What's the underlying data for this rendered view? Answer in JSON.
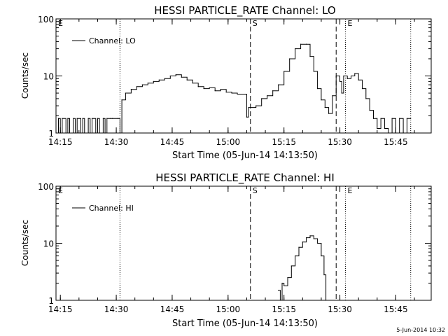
{
  "footer": {
    "stamp": "5-Jun-2014 10:32"
  },
  "chart_data": [
    {
      "type": "line",
      "title": "HESSI PARTICLE_RATE Channel: LO",
      "xlabel": "Start Time (05-Jun-14 14:13:50)",
      "ylabel": "Counts/sec",
      "y_scale": "log",
      "ylim": [
        1,
        100
      ],
      "xlim": [
        "14:13:50",
        "15:54:30"
      ],
      "x_ticks": [
        "14:15",
        "14:30",
        "14:45",
        "15:00",
        "15:15",
        "15:30",
        "15:45"
      ],
      "y_ticks": [
        "1",
        "10",
        "100"
      ],
      "grid": false,
      "legend": "top-left",
      "series": [
        {
          "name": "Channel: LO",
          "color": "#000000",
          "x": [
            "14:13:50",
            "14:14:30",
            "14:15:00",
            "14:15:30",
            "14:16:30",
            "14:17:00",
            "14:17:30",
            "14:18:30",
            "14:19:00",
            "14:19:30",
            "14:20:30",
            "14:21:00",
            "14:21:30",
            "14:22:30",
            "14:23:00",
            "14:23:30",
            "14:24:30",
            "14:25:00",
            "14:25:30",
            "14:26:30",
            "14:27:00",
            "14:27:30",
            "14:28:30",
            "14:29:00",
            "14:30:30",
            "14:31:00",
            "14:31:30",
            "14:32:30",
            "14:34:00",
            "14:35:30",
            "14:37:00",
            "14:38:30",
            "14:40:00",
            "14:41:30",
            "14:43:00",
            "14:44:30",
            "14:46:00",
            "14:47:30",
            "14:49:00",
            "14:50:30",
            "14:52:00",
            "14:53:30",
            "14:55:00",
            "14:56:30",
            "14:58:00",
            "14:59:30",
            "15:01:00",
            "15:02:30",
            "15:05:00",
            "15:05:30",
            "15:06:00",
            "15:07:30",
            "15:09:00",
            "15:10:30",
            "15:12:00",
            "15:13:30",
            "15:15:00",
            "15:16:30",
            "15:18:00",
            "15:19:30",
            "15:21:00",
            "15:22:00",
            "15:23:00",
            "15:24:00",
            "15:25:00",
            "15:26:00",
            "15:27:00",
            "15:28:00",
            "15:29:00",
            "15:30:00",
            "15:30:30",
            "15:31:00",
            "15:32:00",
            "15:33:00",
            "15:34:00",
            "15:35:00",
            "15:36:00",
            "15:37:00",
            "15:38:00",
            "15:39:00",
            "15:40:00",
            "15:41:00",
            "15:42:00",
            "15:43:00",
            "15:44:00",
            "15:45:00",
            "15:46:00",
            "15:47:00",
            "15:48:00",
            "15:49:00"
          ],
          "y": [
            1,
            1.8,
            1,
            1.8,
            1,
            1.8,
            1,
            1.8,
            1,
            1.8,
            1,
            1.8,
            1,
            1.8,
            1,
            1.8,
            1,
            1.8,
            1,
            1.8,
            1,
            1.8,
            1.8,
            1.8,
            1.8,
            1,
            3.8,
            5,
            5.8,
            6.5,
            7,
            7.5,
            8,
            8.5,
            9,
            10,
            10.5,
            9.5,
            8.5,
            7.5,
            6.5,
            6,
            6.2,
            5.5,
            5.8,
            5.2,
            5,
            4.8,
            1.9,
            2.8,
            2.8,
            3,
            4,
            4.5,
            5.5,
            7,
            12,
            20,
            30,
            36,
            36,
            22,
            12,
            6,
            3.8,
            2.8,
            2.2,
            4.5,
            10,
            8,
            5,
            10,
            9,
            10,
            11,
            8.5,
            6,
            4,
            2.5,
            1.8,
            1.2,
            1.8,
            1.2,
            1,
            1.8,
            1,
            1.8,
            1,
            1.8,
            1.8
          ]
        }
      ],
      "markers": {
        "dotted_times": [
          "14:31:00",
          "15:31:30",
          "15:49:00"
        ],
        "dashed_times": [
          "15:06:00",
          "15:29:00"
        ],
        "labels": [
          "E",
          "S",
          "E"
        ]
      }
    },
    {
      "type": "line",
      "title": "HESSI PARTICLE_RATE Channel: HI",
      "xlabel": "Start Time (05-Jun-14 14:13:50)",
      "ylabel": "Counts/sec",
      "y_scale": "log",
      "ylim": [
        1,
        100
      ],
      "xlim": [
        "14:13:50",
        "15:54:30"
      ],
      "x_ticks": [
        "14:15",
        "14:30",
        "14:45",
        "15:00",
        "15:15",
        "15:30",
        "15:45"
      ],
      "y_ticks": [
        "1",
        "10",
        "100"
      ],
      "grid": false,
      "legend": "top-left",
      "series": [
        {
          "name": "Channel: HI",
          "color": "#000000",
          "x": [
            "15:13:30",
            "15:14:00",
            "15:14:30",
            "15:15:00",
            "15:16:00",
            "15:17:00",
            "15:18:00",
            "15:19:00",
            "15:20:00",
            "15:21:00",
            "15:22:00",
            "15:23:00",
            "15:24:00",
            "15:25:00",
            "15:25:45",
            "15:26:15"
          ],
          "y": [
            1.5,
            1,
            2,
            1.8,
            2.5,
            4,
            6,
            8.5,
            10.5,
            12.5,
            13.5,
            12,
            10,
            6,
            2.8,
            1
          ]
        }
      ],
      "markers": {
        "dotted_times": [
          "14:31:00",
          "15:31:30",
          "15:49:00"
        ],
        "dashed_times": [
          "15:06:00",
          "15:29:00"
        ],
        "labels": [
          "E",
          "S",
          "E"
        ]
      }
    }
  ]
}
